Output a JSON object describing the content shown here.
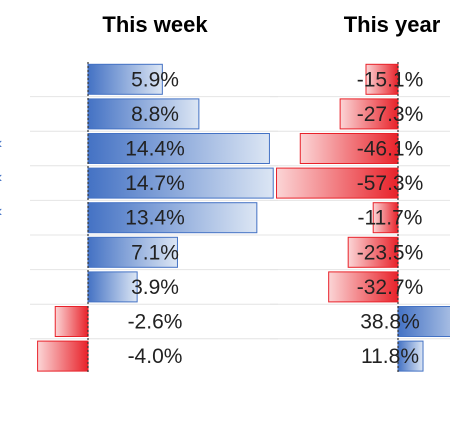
{
  "chart_data": [
    {
      "type": "bar",
      "title": "This week",
      "values": [
        5.9,
        8.8,
        14.4,
        14.7,
        13.4,
        7.1,
        3.9,
        -2.6,
        -4.0
      ],
      "labels": [
        "5.9%",
        "8.8%",
        "14.4%",
        "14.7%",
        "13.4%",
        "7.1%",
        "3.9%",
        "-2.6%",
        "-4.0%"
      ],
      "orientation": "horizontal",
      "data_bars": true
    },
    {
      "type": "bar",
      "title": "This year",
      "values": [
        -15.1,
        -27.3,
        -46.1,
        -57.3,
        -11.7,
        -23.5,
        -32.7,
        38.8,
        11.8
      ],
      "labels": [
        "-15.1%",
        "-27.3%",
        "-46.1%",
        "-57.3%",
        "-11.7%",
        "-23.5%",
        "-32.7%",
        "38.8%",
        "11.8%"
      ],
      "orientation": "horizontal",
      "data_bars": true
    }
  ],
  "colors": {
    "positive": "#4472c4",
    "negative": "#e8222a"
  }
}
